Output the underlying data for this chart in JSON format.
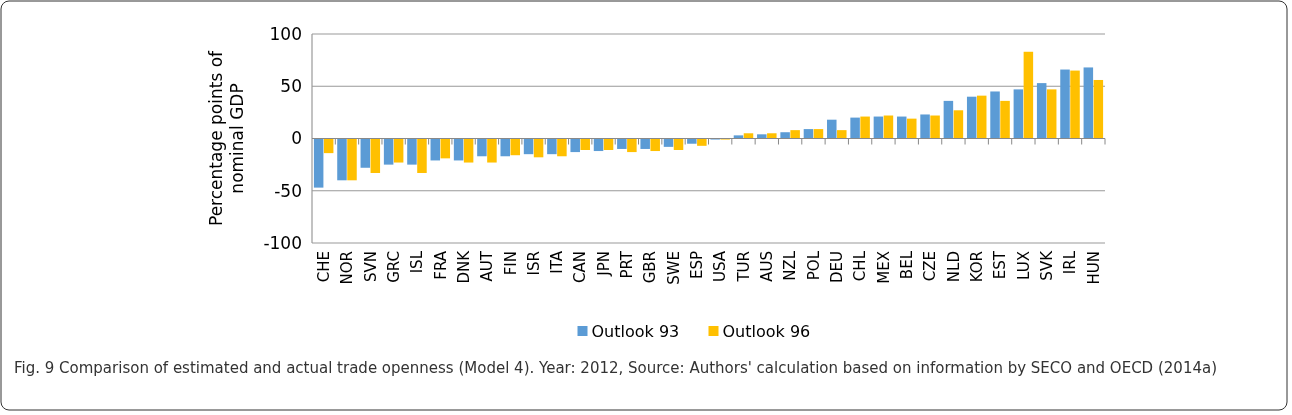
{
  "chart_data": {
    "type": "bar",
    "ylabel": "Percentage points of nominal GDP",
    "categories": [
      "CHE",
      "NOR",
      "SVN",
      "GRC",
      "ISL",
      "FRA",
      "DNK",
      "AUT",
      "FIN",
      "ISR",
      "ITA",
      "CAN",
      "JPN",
      "PRT",
      "GBR",
      "SWE",
      "ESP",
      "USA",
      "TUR",
      "AUS",
      "NZL",
      "POL",
      "DEU",
      "CHL",
      "MEX",
      "BEL",
      "CZE",
      "NLD",
      "KOR",
      "EST",
      "LUX",
      "SVK",
      "IRL",
      "HUN"
    ],
    "series": [
      {
        "name": "Outlook 93",
        "color": "#5b9bd5",
        "values": [
          -47,
          -40,
          -28,
          -25,
          -25,
          -21,
          -21,
          -17,
          -17,
          -15,
          -15,
          -13,
          -12,
          -10,
          -10,
          -8,
          -5,
          -1,
          3,
          4,
          6,
          9,
          18,
          20,
          21,
          21,
          23,
          36,
          40,
          45,
          47,
          53,
          66,
          68
        ]
      },
      {
        "name": "Outlook 96",
        "color": "#ffc000",
        "values": [
          -14,
          -40,
          -33,
          -23,
          -33,
          -19,
          -23,
          -23,
          -16,
          -18,
          -17,
          -11,
          -11,
          -13,
          -12,
          -11,
          -7,
          -1,
          5,
          5,
          8,
          9,
          8,
          21,
          22,
          19,
          22,
          27,
          41,
          36,
          83,
          47,
          65,
          56
        ]
      }
    ],
    "ylim": [
      -100,
      100
    ],
    "yticks": [
      -100,
      -50,
      0,
      50,
      100
    ],
    "grid": "y",
    "legend": "bottom",
    "annotations": [
      "Fig. 9 Comparison of estimated and actual trade openness (Model 4). Year: 2012, Source: Authors' calculation based on information by SECO and OECD (2014a)"
    ]
  }
}
